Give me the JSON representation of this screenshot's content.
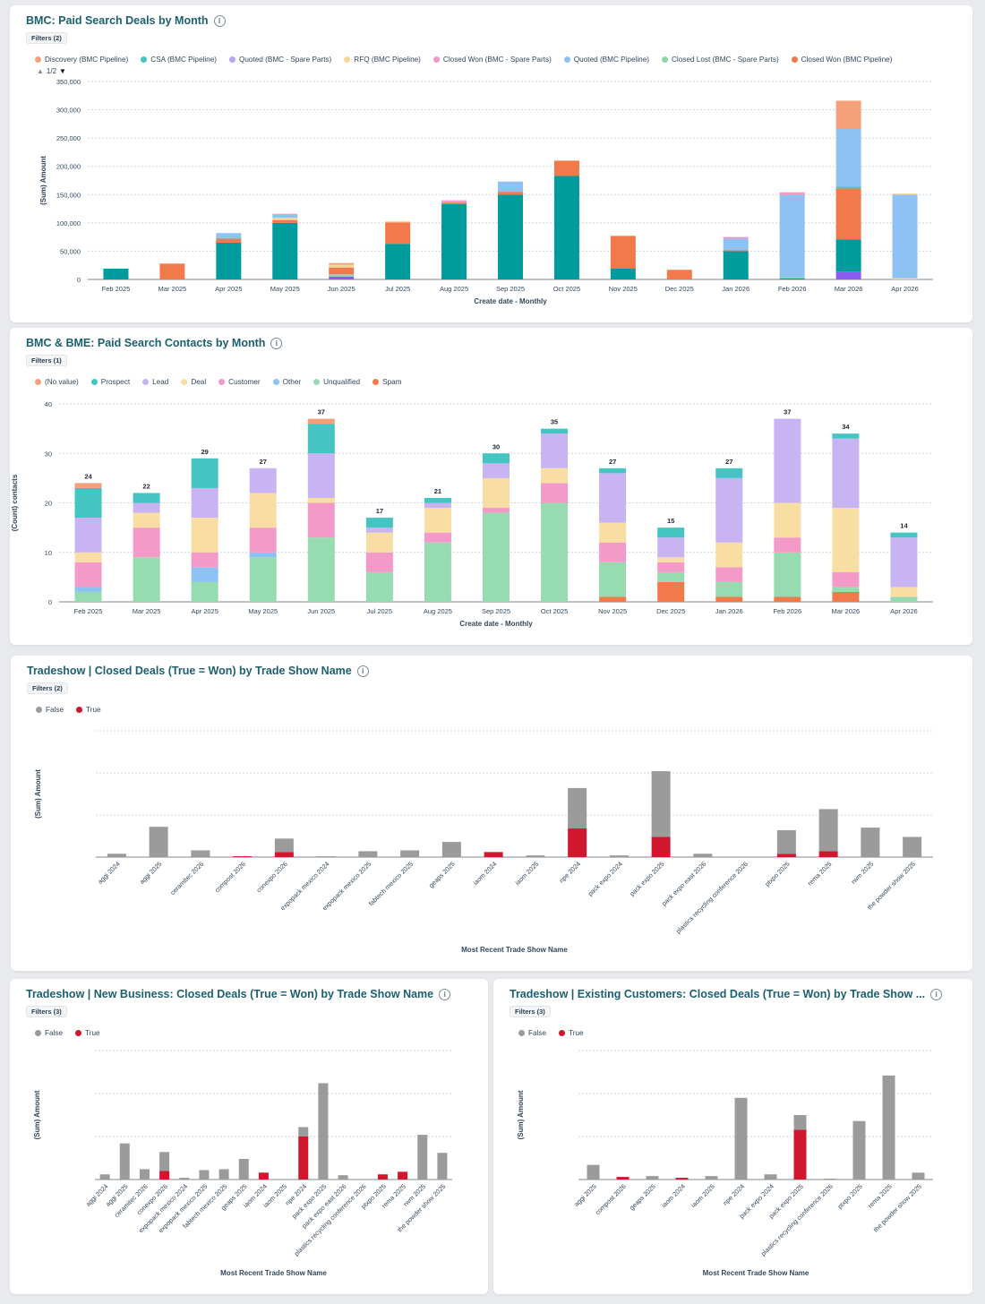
{
  "charts": {
    "deals": {
      "title": "BMC: Paid Search Deals by Month",
      "filters": "Filters (2)",
      "pager": "1/2",
      "chart_data": {
        "type": "bar",
        "stacked": true,
        "xlabel": "Create date - Monthly",
        "ylabel": "(Sum) Amount",
        "ylim": [
          0,
          350000
        ],
        "yticks": [
          0,
          50000,
          100000,
          150000,
          200000,
          250000,
          300000,
          350000
        ],
        "ytick_labels": [
          "0",
          "50,000",
          "100,000",
          "150,000",
          "200,000",
          "250,000",
          "300,000",
          "350,000"
        ],
        "grid": true,
        "legend_position": "top-left",
        "categories": [
          "Feb 2025",
          "Mar 2025",
          "Apr 2025",
          "May 2025",
          "Jun 2025",
          "Jul 2025",
          "Aug 2025",
          "Sep 2025",
          "Oct 2025",
          "Nov 2025",
          "Dec 2025",
          "Jan 2026",
          "Feb 2026",
          "Mar 2026",
          "Apr 2026"
        ],
        "legend": [
          {
            "name": "Discovery (BMC Pipeline)",
            "color": "#f4a07a"
          },
          {
            "name": "CSA (BMC Pipeline)",
            "color": "#45c5c1"
          },
          {
            "name": "Quoted (BMC - Spare Parts)",
            "color": "#b9a6ef"
          },
          {
            "name": "RFQ (BMC Pipeline)",
            "color": "#f6d79a"
          },
          {
            "name": "Closed Won (BMC - Spare Parts)",
            "color": "#f29ac3"
          },
          {
            "name": "Quoted (BMC Pipeline)",
            "color": "#8ec2f2"
          },
          {
            "name": "Closed Lost (BMC - Spare Parts)",
            "color": "#8ed6a8"
          },
          {
            "name": "Closed Won (BMC Pipeline)",
            "color": "#f27a4a"
          }
        ],
        "series": [
          {
            "color": "#8b5cf0",
            "values": [
              0,
              0,
              0,
              0,
              5000,
              0,
              0,
              0,
              0,
              0,
              0,
              0,
              0,
              14000,
              0
            ]
          },
          {
            "color": "#009b9c",
            "values": [
              19000,
              0,
              65000,
              100000,
              0,
              63000,
              133000,
              150000,
              183000,
              19000,
              0,
              50000,
              2000,
              57000,
              0
            ]
          },
          {
            "color": "#8ed6a8",
            "values": [
              0,
              0,
              0,
              0,
              4000,
              0,
              0,
              0,
              0,
              0,
              0,
              0,
              2000,
              0,
              0
            ]
          },
          {
            "color": "#f27a4a",
            "values": [
              0,
              28000,
              7000,
              5000,
              12000,
              38000,
              3000,
              5000,
              27000,
              58000,
              17000,
              2000,
              0,
              90000,
              0
            ]
          },
          {
            "color": "#f6d79a",
            "values": [
              0,
              0,
              0,
              4000,
              5000,
              2000,
              0,
              0,
              0,
              0,
              0,
              0,
              0,
              0,
              2000
            ]
          },
          {
            "color": "#f4a07a",
            "values": [
              0,
              0,
              0,
              0,
              3000,
              0,
              0,
              0,
              0,
              0,
              0,
              0,
              0,
              0,
              0
            ]
          },
          {
            "color": "#45c5c1",
            "values": [
              0,
              0,
              0,
              0,
              0,
              0,
              0,
              0,
              0,
              0,
              0,
              0,
              0,
              3000,
              0
            ]
          },
          {
            "color": "#8ec2f2",
            "values": [
              0,
              0,
              10000,
              5000,
              0,
              0,
              2000,
              18000,
              0,
              0,
              0,
              20000,
              145000,
              102000,
              148000
            ]
          },
          {
            "color": "#f29ac3",
            "values": [
              0,
              0,
              0,
              2000,
              0,
              0,
              2000,
              0,
              0,
              0,
              0,
              3000,
              5000,
              0,
              0
            ]
          },
          {
            "color": "#f4a07a",
            "values": [
              0,
              0,
              0,
              0,
              0,
              0,
              0,
              0,
              0,
              0,
              0,
              0,
              0,
              50000,
              0
            ]
          },
          {
            "color": "#f6d79a",
            "values": [
              0,
              0,
              0,
              0,
              0,
              0,
              0,
              0,
              0,
              0,
              0,
              0,
              0,
              0,
              2000
            ]
          }
        ]
      }
    },
    "contacts": {
      "title": "BMC & BME: Paid Search Contacts by Month",
      "filters": "Filters (1)",
      "chart_data": {
        "type": "bar",
        "stacked": true,
        "xlabel": "Create date - Monthly",
        "ylabel": "(Count) contacts",
        "ylim": [
          0,
          40
        ],
        "yticks": [
          0,
          10,
          20,
          30,
          40
        ],
        "ytick_labels": [
          "0",
          "10",
          "20",
          "30",
          "40"
        ],
        "grid": true,
        "legend_position": "top-left",
        "categories": [
          "Feb 2025",
          "Mar 2025",
          "Apr 2025",
          "May 2025",
          "Jun 2025",
          "Jul 2025",
          "Aug 2025",
          "Sep 2025",
          "Oct 2025",
          "Nov 2025",
          "Dec 2025",
          "Jan 2026",
          "Feb 2026",
          "Mar 2026",
          "Apr 2026"
        ],
        "totals": [
          24,
          22,
          29,
          27,
          37,
          17,
          21,
          30,
          35,
          27,
          15,
          27,
          37,
          34,
          14
        ],
        "legend": [
          {
            "name": "(No value)",
            "color": "#f4a07a"
          },
          {
            "name": "Prospect",
            "color": "#45c5c1"
          },
          {
            "name": "Lead",
            "color": "#c8b4f2"
          },
          {
            "name": "Deal",
            "color": "#f8dea3"
          },
          {
            "name": "Customer",
            "color": "#f49ac9"
          },
          {
            "name": "Other",
            "color": "#8ec2f2"
          },
          {
            "name": "Unqualified",
            "color": "#97dbb0"
          },
          {
            "name": "Spam",
            "color": "#f27a4a"
          }
        ],
        "series": [
          {
            "name": "Spam",
            "color": "#f27a4a",
            "values": [
              0,
              0,
              0,
              0,
              0,
              0,
              0,
              0,
              0,
              1,
              4,
              1,
              1,
              2,
              0
            ]
          },
          {
            "name": "Unqualified",
            "color": "#97dbb0",
            "values": [
              2,
              9,
              4,
              9,
              13,
              6,
              12,
              18,
              20,
              7,
              2,
              3,
              9,
              1,
              1
            ]
          },
          {
            "name": "Other",
            "color": "#8ec2f2",
            "values": [
              1,
              0,
              3,
              1,
              0,
              0,
              0,
              0,
              0,
              0,
              0,
              0,
              0,
              0,
              0
            ]
          },
          {
            "name": "Customer",
            "color": "#f49ac9",
            "values": [
              5,
              6,
              3,
              5,
              7,
              4,
              2,
              1,
              4,
              4,
              2,
              3,
              3,
              3,
              0
            ]
          },
          {
            "name": "Deal",
            "color": "#f8dea3",
            "values": [
              2,
              3,
              7,
              7,
              1,
              4,
              5,
              6,
              3,
              4,
              1,
              5,
              7,
              13,
              2
            ]
          },
          {
            "name": "Lead",
            "color": "#c8b4f2",
            "values": [
              7,
              2,
              6,
              5,
              9,
              1,
              1,
              3,
              7,
              10,
              4,
              13,
              17,
              14,
              10
            ]
          },
          {
            "name": "Prospect",
            "color": "#45c5c1",
            "values": [
              6,
              2,
              6,
              0,
              6,
              2,
              1,
              2,
              1,
              1,
              2,
              2,
              0,
              1,
              1
            ]
          },
          {
            "name": "(No value)",
            "color": "#f4a07a",
            "values": [
              1,
              0,
              0,
              0,
              1,
              0,
              0,
              0,
              0,
              0,
              0,
              0,
              0,
              0,
              0
            ]
          }
        ]
      }
    },
    "tradeshow": {
      "title": "Tradeshow | Closed Deals (True = Won) by Trade Show Name",
      "filters": "Filters (2)",
      "chart_data": {
        "type": "bar",
        "stacked": true,
        "xlabel": "Most Recent Trade Show Name",
        "ylabel": "(Sum) Amount",
        "ylim": [
          0,
          150
        ],
        "grid": true,
        "legend_position": "top-left",
        "categories": [
          "aggi 2024",
          "aggi 2025",
          "ceramitec 2026",
          "compost 2026",
          "conexpo 2026",
          "expopack mexico 2024",
          "expopack mexico 2025",
          "fabtech mexico 2025",
          "geaps 2025",
          "iaom 2024",
          "iaom 2025",
          "npe 2024",
          "pack expo 2024",
          "pack expo 2025",
          "pack expo east 2026",
          "plastics recycling conference 2026",
          "ptxpo 2025",
          "rema 2025",
          "rwm 2025",
          "the powder show 2025"
        ],
        "series": [
          {
            "name": "True",
            "color": "#d0172e",
            "values": [
              0,
              0,
              0,
              1,
              6,
              0,
              0,
              0,
              0,
              6,
              0,
              34,
              0,
              24,
              0,
              0,
              4,
              7,
              0,
              0
            ]
          },
          {
            "name": "False",
            "color": "#9b9b9b",
            "values": [
              4,
              36,
              8,
              0,
              16,
              1,
              7,
              8,
              18,
              0,
              2,
              48,
              2,
              78,
              4,
              0,
              28,
              50,
              35,
              24
            ]
          }
        ]
      }
    },
    "newbiz": {
      "title": "Tradeshow | New Business: Closed Deals (True = Won) by Trade Show Name",
      "filters": "Filters (3)",
      "chart_data": {
        "type": "bar",
        "stacked": true,
        "xlabel": "Most Recent Trade Show Name",
        "ylabel": "(Sum) Amount",
        "ylim": [
          0,
          150
        ],
        "grid": true,
        "legend_position": "top-left",
        "categories": [
          "aggi 2024",
          "aggi 2025",
          "ceramitec 2026",
          "conexpo 2026",
          "expopack mexico 2024",
          "expopack mexico 2025",
          "fabtech mexico 2025",
          "geaps 2025",
          "iaom 2024",
          "iaom 2025",
          "npe 2024",
          "pack expo 2025",
          "pack expo east 2026",
          "plastics recycling conference 2026",
          "ptxpo 2025",
          "rema 2025",
          "rwm 2025",
          "the powder show 2025"
        ],
        "series": [
          {
            "name": "True",
            "color": "#d0172e",
            "values": [
              0,
              0,
              0,
              10,
              0,
              0,
              0,
              0,
              8,
              0,
              50,
              0,
              0,
              0,
              6,
              9,
              0,
              0
            ]
          },
          {
            "name": "False",
            "color": "#9b9b9b",
            "values": [
              6,
              42,
              12,
              22,
              2,
              11,
              12,
              24,
              0,
              0,
              11,
              112,
              5,
              0,
              0,
              0,
              52,
              31
            ]
          }
        ]
      }
    },
    "existing": {
      "title": "Tradeshow | Existing Customers: Closed Deals (True = Won) by Trade Show ...",
      "filters": "Filters (3)",
      "chart_data": {
        "type": "bar",
        "stacked": true,
        "xlabel": "Most Recent Trade Show Name",
        "ylabel": "(Sum) Amount",
        "ylim": [
          0,
          150
        ],
        "grid": true,
        "legend_position": "top-left",
        "categories": [
          "aggi 2025",
          "compost 2026",
          "geaps 2025",
          "iaom 2024",
          "iaom 2025",
          "npe 2024",
          "pack expo 2024",
          "pack expo 2025",
          "plastics recycling conference 2026",
          "ptxpo 2025",
          "rema 2025",
          "the powder show 2025"
        ],
        "series": [
          {
            "name": "True",
            "color": "#d0172e",
            "values": [
              0,
              3,
              0,
              2,
              0,
              0,
              0,
              58,
              0,
              0,
              0,
              0
            ]
          },
          {
            "name": "False",
            "color": "#9b9b9b",
            "values": [
              17,
              0,
              4,
              0,
              4,
              95,
              6,
              17,
              1,
              68,
              121,
              8
            ]
          }
        ]
      }
    }
  },
  "tradeshow_legend": [
    {
      "name": "False",
      "color": "#9b9b9b"
    },
    {
      "name": "True",
      "color": "#d0172e"
    }
  ]
}
